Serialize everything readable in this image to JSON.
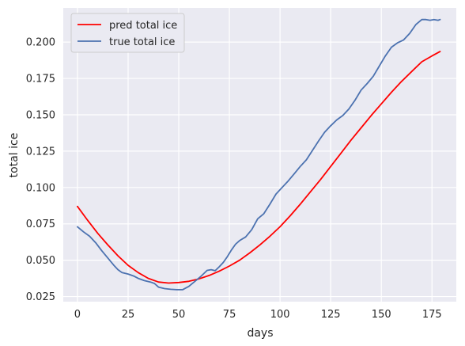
{
  "chart_data": {
    "type": "line",
    "title": "",
    "xlabel": "days",
    "ylabel": "total ice",
    "xlim": [
      -7,
      187
    ],
    "ylim": [
      0.0215,
      0.2235
    ],
    "x_ticks": [
      0,
      25,
      50,
      75,
      100,
      125,
      150,
      175
    ],
    "y_ticks": [
      0.025,
      0.05,
      0.075,
      0.1,
      0.125,
      0.15,
      0.175,
      0.2
    ],
    "y_tick_labels": [
      "0.025",
      "0.050",
      "0.075",
      "0.100",
      "0.125",
      "0.150",
      "0.175",
      "0.200"
    ],
    "grid": true,
    "legend_position": "upper-left",
    "series": [
      {
        "name": "pred total ice",
        "color": "#ff0000",
        "x": [
          0,
          5,
          10,
          15,
          20,
          25,
          30,
          35,
          40,
          45,
          50,
          55,
          60,
          65,
          70,
          75,
          80,
          85,
          90,
          95,
          100,
          105,
          110,
          115,
          120,
          125,
          130,
          135,
          140,
          145,
          150,
          155,
          160,
          165,
          170,
          175,
          179
        ],
        "y": [
          0.087,
          0.0775,
          0.0685,
          0.0605,
          0.053,
          0.0465,
          0.0415,
          0.0375,
          0.035,
          0.0343,
          0.0347,
          0.0355,
          0.0372,
          0.0395,
          0.0425,
          0.046,
          0.05,
          0.055,
          0.0605,
          0.0665,
          0.073,
          0.0805,
          0.0885,
          0.097,
          0.1055,
          0.1145,
          0.1235,
          0.1325,
          0.141,
          0.1495,
          0.1575,
          0.1655,
          0.173,
          0.1798,
          0.1865,
          0.1905,
          0.1935
        ]
      },
      {
        "name": "true total ice",
        "color": "#4c72b0",
        "x": [
          0,
          3,
          6,
          9,
          12,
          15,
          18,
          20,
          22,
          25,
          28,
          30,
          33,
          36,
          38,
          40,
          43,
          46,
          49,
          52,
          55,
          58,
          61,
          64,
          66,
          68,
          70,
          72,
          74,
          76,
          78,
          80,
          83,
          86,
          89,
          92,
          95,
          98,
          101,
          104,
          107,
          110,
          113,
          116,
          119,
          122,
          125,
          128,
          131,
          134,
          137,
          140,
          143,
          146,
          149,
          152,
          155,
          158,
          161,
          164,
          167,
          170,
          172,
          174,
          176,
          178,
          179
        ],
        "y": [
          0.073,
          0.0695,
          0.0665,
          0.062,
          0.0565,
          0.0515,
          0.0465,
          0.0435,
          0.0415,
          0.0405,
          0.039,
          0.0375,
          0.036,
          0.035,
          0.034,
          0.0315,
          0.0305,
          0.03,
          0.0297,
          0.0298,
          0.032,
          0.0355,
          0.039,
          0.043,
          0.0435,
          0.0428,
          0.0455,
          0.0485,
          0.0525,
          0.057,
          0.061,
          0.0635,
          0.066,
          0.071,
          0.0785,
          0.082,
          0.0885,
          0.0955,
          0.1,
          0.1045,
          0.1095,
          0.1145,
          0.119,
          0.1255,
          0.132,
          0.138,
          0.1425,
          0.1465,
          0.1495,
          0.154,
          0.16,
          0.167,
          0.1715,
          0.1765,
          0.1835,
          0.1905,
          0.1965,
          0.1995,
          0.2015,
          0.206,
          0.212,
          0.2155,
          0.2155,
          0.215,
          0.2155,
          0.215,
          0.2155
        ]
      }
    ]
  }
}
